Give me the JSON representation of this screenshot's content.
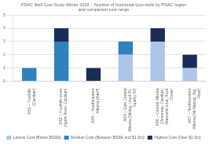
{
  "chart_data": {
    "type": "bar",
    "stacked": true,
    "title": "PSAC Well Cost Study Winter 2016 – Number of horizontal type wells by PSAC region\nand completion cost range",
    "categories": [
      "AB1 – Foothills\n(Cardium)",
      "AB2 – Foothills more\n(Spirit River, Cardium)",
      "AB5 – Southeastern\nAlberta (Banff)",
      "AB4 – East Central\nAlberta (Viking, Lloyd 50,\nSparky 50)",
      "AB5 – Central Alberta\n(Duvernay, Cardium,\nMannville total, Rock\nCreek)",
      "AB7 – Northwestern\nAlberta (McMurray, Atg.\nRiver)"
    ],
    "series": [
      {
        "name": "Lowest Cost (Below $500k)",
        "color": "#adc6e8",
        "values": [
          0,
          0,
          0,
          2,
          3,
          1
        ]
      },
      {
        "name": "Medium Cost (Between $500k and $1.5m)",
        "color": "#2e82c0",
        "values": [
          1,
          3,
          0,
          1,
          0,
          0
        ]
      },
      {
        "name": "Highest Cost (Over $1.5m)",
        "color": "#1a2d58",
        "values": [
          0,
          1,
          1,
          0,
          1,
          1
        ]
      }
    ],
    "ylim": [
      0,
      5
    ],
    "yticks": [
      0,
      1,
      2,
      3,
      4,
      5
    ],
    "grid": true,
    "legend": "bottom"
  }
}
